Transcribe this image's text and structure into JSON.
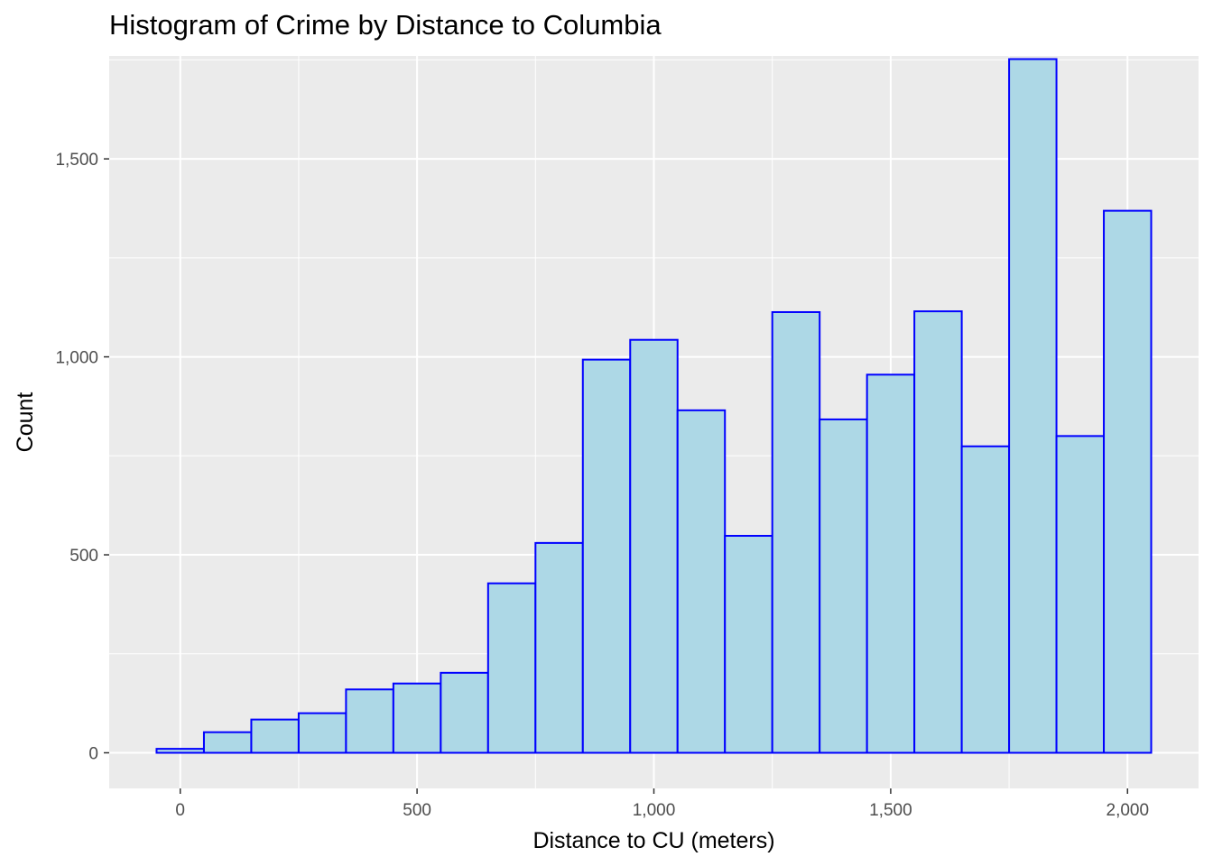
{
  "colors": {
    "panel_background": "#ebebeb",
    "grid_major": "#ffffff",
    "bar_fill": "#add8e6",
    "bar_outline": "#0000ff",
    "tick_text": "#4d4d4d",
    "tick_mark": "#333333"
  },
  "chart_data": {
    "type": "bar",
    "title": "Histogram of Crime by Distance to Columbia",
    "xlabel": "Distance to CU (meters)",
    "ylabel": "Count",
    "xlim": [
      -150,
      2150
    ],
    "ylim": [
      -90,
      1760
    ],
    "grid": true,
    "bin_width": 100,
    "bins": [
      {
        "x0": -50,
        "x1": 50,
        "count": 10
      },
      {
        "x0": 50,
        "x1": 150,
        "count": 52
      },
      {
        "x0": 150,
        "x1": 250,
        "count": 84
      },
      {
        "x0": 250,
        "x1": 350,
        "count": 100
      },
      {
        "x0": 350,
        "x1": 450,
        "count": 160
      },
      {
        "x0": 450,
        "x1": 550,
        "count": 175
      },
      {
        "x0": 550,
        "x1": 650,
        "count": 202
      },
      {
        "x0": 650,
        "x1": 750,
        "count": 428
      },
      {
        "x0": 750,
        "x1": 850,
        "count": 530
      },
      {
        "x0": 850,
        "x1": 950,
        "count": 993
      },
      {
        "x0": 950,
        "x1": 1050,
        "count": 1043
      },
      {
        "x0": 1050,
        "x1": 1150,
        "count": 865
      },
      {
        "x0": 1150,
        "x1": 1250,
        "count": 548
      },
      {
        "x0": 1250,
        "x1": 1350,
        "count": 1113
      },
      {
        "x0": 1350,
        "x1": 1450,
        "count": 842
      },
      {
        "x0": 1450,
        "x1": 1550,
        "count": 955
      },
      {
        "x0": 1550,
        "x1": 1650,
        "count": 1115
      },
      {
        "x0": 1650,
        "x1": 1750,
        "count": 774
      },
      {
        "x0": 1750,
        "x1": 1850,
        "count": 1752
      },
      {
        "x0": 1850,
        "x1": 1950,
        "count": 800
      },
      {
        "x0": 1950,
        "x1": 2050,
        "count": 1369
      }
    ],
    "x_ticks": [
      {
        "value": 0,
        "label": "0"
      },
      {
        "value": 500,
        "label": "500"
      },
      {
        "value": 1000,
        "label": "1,000"
      },
      {
        "value": 1500,
        "label": "1,500"
      },
      {
        "value": 2000,
        "label": "2,000"
      }
    ],
    "y_ticks": [
      {
        "value": 0,
        "label": "0"
      },
      {
        "value": 500,
        "label": "500"
      },
      {
        "value": 1000,
        "label": "1,000"
      },
      {
        "value": 1500,
        "label": "1,500"
      }
    ],
    "x_minor": [
      250,
      750,
      1250,
      1750
    ],
    "y_minor": [
      250,
      750,
      1250,
      1750
    ]
  }
}
